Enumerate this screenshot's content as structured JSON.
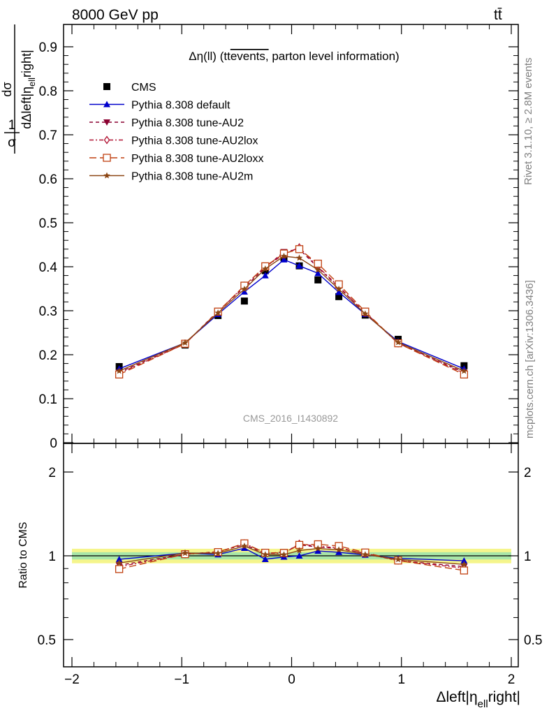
{
  "header": {
    "energy_label": "8000 GeV pp",
    "process_label": "tt̄"
  },
  "side_labels": {
    "rivet": "Rivet 3.1.10, ≥ 2.8M events",
    "mcplots": "mcplots.cern.ch [arXiv:1306.3436]"
  },
  "chart_data": {
    "type": "line",
    "title": "Δη(ll) (tt̄ events, parton level information)",
    "watermark": "CMS_2016_I1430892",
    "xlabel": "Δleft|η_ell right|",
    "ylabel": "1/σ dσ/dΔleft|η_ell right|",
    "ratio_ylabel": "Ratio to CMS",
    "xlim": [
      -2.1,
      2.1
    ],
    "ylim": [
      0,
      0.95
    ],
    "ratio_ylim": [
      0.4,
      2.3
    ],
    "x_ticks": [
      "−2",
      "−1",
      "0",
      "1",
      "2"
    ],
    "y_ticks": [
      "0",
      "0.1",
      "0.2",
      "0.3",
      "0.4",
      "0.5",
      "0.6",
      "0.7",
      "0.8",
      "0.9"
    ],
    "ratio_ticks": [
      "0.5",
      "1",
      "2"
    ],
    "x": [
      -1.57,
      -0.97,
      -0.67,
      -0.43,
      -0.24,
      -0.07,
      0.07,
      0.24,
      0.43,
      0.67,
      0.97,
      1.57
    ],
    "series": [
      {
        "name": "CMS",
        "color": "#000000",
        "marker": "square",
        "style": "points",
        "values": [
          0.173,
          0.222,
          0.289,
          0.322,
          0.391,
          0.42,
          0.402,
          0.37,
          0.332,
          0.29,
          0.235,
          0.175
        ]
      },
      {
        "name": "Pythia 8.308 default",
        "color": "#0000cc",
        "marker": "triangle-up",
        "style": "solid",
        "values": [
          0.168,
          0.227,
          0.292,
          0.343,
          0.38,
          0.416,
          0.402,
          0.385,
          0.342,
          0.292,
          0.23,
          0.168
        ]
      },
      {
        "name": "Pythia 8.308 tune-AU2",
        "color": "#8b0030",
        "marker": "triangle-down",
        "style": "dash",
        "values": [
          0.16,
          0.225,
          0.299,
          0.353,
          0.398,
          0.434,
          0.44,
          0.398,
          0.353,
          0.296,
          0.226,
          0.16
        ]
      },
      {
        "name": "Pythia 8.308 tune-AU2lox",
        "color": "#b01030",
        "marker": "diamond-open",
        "style": "dashdot",
        "values": [
          0.158,
          0.225,
          0.297,
          0.357,
          0.4,
          0.428,
          0.444,
          0.4,
          0.355,
          0.295,
          0.226,
          0.158
        ]
      },
      {
        "name": "Pythia 8.308 tune-AU2loxx",
        "color": "#c04010",
        "marker": "square-open",
        "style": "longdash",
        "values": [
          0.155,
          0.225,
          0.298,
          0.357,
          0.401,
          0.43,
          0.44,
          0.407,
          0.36,
          0.298,
          0.226,
          0.155
        ]
      },
      {
        "name": "Pythia 8.308 tune-AU2m",
        "color": "#8b4513",
        "marker": "star",
        "style": "solid",
        "values": [
          0.163,
          0.227,
          0.295,
          0.349,
          0.395,
          0.424,
          0.42,
          0.393,
          0.349,
          0.293,
          0.228,
          0.163
        ]
      }
    ]
  }
}
